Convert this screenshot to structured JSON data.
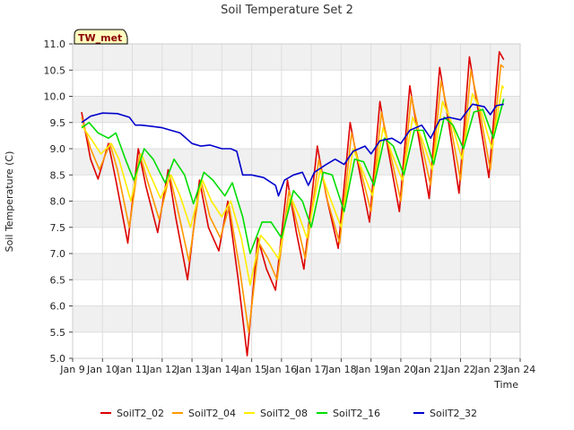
{
  "chart_data": {
    "type": "line",
    "title": "Soil Temperature Set 2",
    "xlabel": "Time",
    "ylabel": "Soil Temperature (C)",
    "station_label": "TW_met",
    "xlim": [
      9,
      24
    ],
    "ylim": [
      5.0,
      11.0
    ],
    "x_tick_labels": [
      "Jan 9",
      "Jan 10",
      "Jan 11",
      "Jan 12",
      "Jan 13",
      "Jan 14",
      "Jan 15",
      "Jan 16",
      "Jan 17",
      "Jan 18",
      "Jan 19",
      "Jan 20",
      "Jan 21",
      "Jan 22",
      "Jan 23",
      "Jan 24"
    ],
    "y_tick_labels": [
      "5.0",
      "5.5",
      "6.0",
      "6.5",
      "7.0",
      "7.5",
      "8.0",
      "8.5",
      "9.0",
      "9.5",
      "10.0",
      "10.5",
      "11.0"
    ],
    "grid": true,
    "legend_position": "bottom",
    "series": [
      {
        "name": "SoilT2_02",
        "color": "#dd0000",
        "points": [
          [
            9.3,
            9.7
          ],
          [
            9.6,
            8.8
          ],
          [
            9.85,
            8.42
          ],
          [
            10.2,
            9.1
          ],
          [
            10.45,
            8.4
          ],
          [
            10.85,
            7.2
          ],
          [
            11.2,
            9.0
          ],
          [
            11.45,
            8.3
          ],
          [
            11.85,
            7.4
          ],
          [
            12.2,
            8.6
          ],
          [
            12.45,
            7.7
          ],
          [
            12.85,
            6.5
          ],
          [
            13.25,
            8.4
          ],
          [
            13.55,
            7.5
          ],
          [
            13.9,
            7.05
          ],
          [
            14.2,
            8.0
          ],
          [
            14.55,
            6.5
          ],
          [
            14.85,
            5.05
          ],
          [
            15.2,
            7.3
          ],
          [
            15.5,
            6.7
          ],
          [
            15.8,
            6.3
          ],
          [
            16.2,
            8.4
          ],
          [
            16.5,
            7.4
          ],
          [
            16.75,
            6.7
          ],
          [
            17.2,
            9.05
          ],
          [
            17.5,
            8.1
          ],
          [
            17.9,
            7.1
          ],
          [
            18.3,
            9.5
          ],
          [
            18.6,
            8.6
          ],
          [
            18.95,
            7.6
          ],
          [
            19.3,
            9.9
          ],
          [
            19.6,
            8.9
          ],
          [
            19.95,
            7.8
          ],
          [
            20.3,
            10.2
          ],
          [
            20.6,
            9.2
          ],
          [
            20.95,
            8.05
          ],
          [
            21.3,
            10.55
          ],
          [
            21.6,
            9.5
          ],
          [
            21.95,
            8.15
          ],
          [
            22.3,
            10.75
          ],
          [
            22.6,
            9.7
          ],
          [
            22.95,
            8.45
          ],
          [
            23.3,
            10.85
          ],
          [
            23.45,
            10.7
          ]
        ]
      },
      {
        "name": "SoilT2_04",
        "color": "#ff9900",
        "points": [
          [
            9.3,
            9.6
          ],
          [
            9.6,
            9.0
          ],
          [
            9.9,
            8.6
          ],
          [
            10.25,
            9.1
          ],
          [
            10.5,
            8.6
          ],
          [
            10.9,
            7.5
          ],
          [
            11.25,
            8.9
          ],
          [
            11.5,
            8.4
          ],
          [
            11.9,
            7.65
          ],
          [
            12.25,
            8.5
          ],
          [
            12.5,
            7.9
          ],
          [
            12.9,
            6.85
          ],
          [
            13.3,
            8.4
          ],
          [
            13.6,
            7.7
          ],
          [
            13.95,
            7.3
          ],
          [
            14.25,
            7.9
          ],
          [
            14.6,
            6.7
          ],
          [
            14.9,
            5.5
          ],
          [
            15.25,
            7.2
          ],
          [
            15.55,
            6.9
          ],
          [
            15.85,
            6.5
          ],
          [
            16.25,
            8.2
          ],
          [
            16.55,
            7.5
          ],
          [
            16.8,
            6.9
          ],
          [
            17.25,
            8.8
          ],
          [
            17.55,
            8.0
          ],
          [
            17.95,
            7.2
          ],
          [
            18.35,
            9.3
          ],
          [
            18.65,
            8.6
          ],
          [
            19.0,
            7.8
          ],
          [
            19.35,
            9.7
          ],
          [
            19.65,
            8.9
          ],
          [
            20.0,
            8.0
          ],
          [
            20.35,
            10.0
          ],
          [
            20.65,
            9.2
          ],
          [
            21.0,
            8.3
          ],
          [
            21.35,
            10.3
          ],
          [
            21.65,
            9.5
          ],
          [
            22.0,
            8.4
          ],
          [
            22.35,
            10.5
          ],
          [
            22.65,
            9.7
          ],
          [
            23.0,
            8.6
          ],
          [
            23.35,
            10.6
          ],
          [
            23.45,
            10.55
          ]
        ]
      },
      {
        "name": "SoilT2_08",
        "color": "#ffee00",
        "points": [
          [
            9.3,
            9.45
          ],
          [
            9.6,
            9.2
          ],
          [
            9.95,
            8.9
          ],
          [
            10.3,
            9.1
          ],
          [
            10.55,
            8.8
          ],
          [
            10.95,
            8.0
          ],
          [
            11.3,
            8.9
          ],
          [
            11.6,
            8.5
          ],
          [
            11.95,
            8.05
          ],
          [
            12.3,
            8.5
          ],
          [
            12.6,
            8.1
          ],
          [
            12.95,
            7.5
          ],
          [
            13.35,
            8.4
          ],
          [
            13.65,
            8.0
          ],
          [
            14.0,
            7.7
          ],
          [
            14.3,
            8.0
          ],
          [
            14.65,
            7.3
          ],
          [
            14.95,
            6.4
          ],
          [
            15.3,
            7.35
          ],
          [
            15.6,
            7.15
          ],
          [
            15.9,
            6.9
          ],
          [
            16.3,
            8.1
          ],
          [
            16.6,
            7.7
          ],
          [
            16.85,
            7.3
          ],
          [
            17.3,
            8.6
          ],
          [
            17.6,
            8.1
          ],
          [
            18.0,
            7.5
          ],
          [
            18.4,
            9.0
          ],
          [
            18.7,
            8.6
          ],
          [
            19.05,
            8.1
          ],
          [
            19.4,
            9.4
          ],
          [
            19.7,
            8.9
          ],
          [
            20.05,
            8.4
          ],
          [
            20.4,
            9.6
          ],
          [
            20.7,
            9.2
          ],
          [
            21.05,
            8.6
          ],
          [
            21.4,
            9.9
          ],
          [
            21.7,
            9.5
          ],
          [
            22.05,
            8.8
          ],
          [
            22.4,
            10.05
          ],
          [
            22.7,
            9.7
          ],
          [
            23.05,
            9.0
          ],
          [
            23.4,
            10.2
          ],
          [
            23.45,
            10.15
          ]
        ]
      },
      {
        "name": "SoilT2_16",
        "color": "#00dd00",
        "points": [
          [
            9.3,
            9.4
          ],
          [
            9.55,
            9.5
          ],
          [
            9.85,
            9.3
          ],
          [
            10.2,
            9.2
          ],
          [
            10.45,
            9.3
          ],
          [
            10.8,
            8.75
          ],
          [
            11.05,
            8.4
          ],
          [
            11.4,
            9.0
          ],
          [
            11.7,
            8.8
          ],
          [
            12.1,
            8.35
          ],
          [
            12.4,
            8.8
          ],
          [
            12.75,
            8.5
          ],
          [
            13.05,
            7.95
          ],
          [
            13.4,
            8.55
          ],
          [
            13.7,
            8.4
          ],
          [
            14.1,
            8.1
          ],
          [
            14.35,
            8.35
          ],
          [
            14.7,
            7.7
          ],
          [
            14.95,
            7.0
          ],
          [
            15.35,
            7.6
          ],
          [
            15.65,
            7.6
          ],
          [
            16.0,
            7.3
          ],
          [
            16.4,
            8.2
          ],
          [
            16.7,
            8.0
          ],
          [
            17.0,
            7.5
          ],
          [
            17.4,
            8.55
          ],
          [
            17.7,
            8.5
          ],
          [
            18.1,
            7.8
          ],
          [
            18.45,
            8.8
          ],
          [
            18.75,
            8.75
          ],
          [
            19.1,
            8.3
          ],
          [
            19.45,
            9.2
          ],
          [
            19.75,
            9.05
          ],
          [
            20.1,
            8.5
          ],
          [
            20.45,
            9.35
          ],
          [
            20.75,
            9.35
          ],
          [
            21.1,
            8.7
          ],
          [
            21.45,
            9.6
          ],
          [
            21.75,
            9.45
          ],
          [
            22.1,
            9.0
          ],
          [
            22.45,
            9.7
          ],
          [
            22.75,
            9.75
          ],
          [
            23.1,
            9.2
          ],
          [
            23.45,
            9.95
          ]
        ]
      },
      {
        "name": "SoilT2_32",
        "color": "#0000cc",
        "points": [
          [
            9.3,
            9.5
          ],
          [
            9.6,
            9.62
          ],
          [
            10.0,
            9.68
          ],
          [
            10.5,
            9.67
          ],
          [
            10.9,
            9.6
          ],
          [
            11.1,
            9.45
          ],
          [
            11.3,
            9.45
          ],
          [
            11.6,
            9.43
          ],
          [
            12.0,
            9.4
          ],
          [
            12.3,
            9.35
          ],
          [
            12.6,
            9.3
          ],
          [
            13.0,
            9.1
          ],
          [
            13.3,
            9.05
          ],
          [
            13.6,
            9.07
          ],
          [
            14.0,
            9.0
          ],
          [
            14.3,
            9.0
          ],
          [
            14.5,
            8.95
          ],
          [
            14.7,
            8.5
          ],
          [
            15.0,
            8.5
          ],
          [
            15.4,
            8.45
          ],
          [
            15.8,
            8.3
          ],
          [
            15.9,
            8.1
          ],
          [
            16.1,
            8.4
          ],
          [
            16.4,
            8.5
          ],
          [
            16.7,
            8.55
          ],
          [
            16.9,
            8.3
          ],
          [
            17.1,
            8.55
          ],
          [
            17.5,
            8.7
          ],
          [
            17.8,
            8.8
          ],
          [
            18.1,
            8.7
          ],
          [
            18.4,
            8.95
          ],
          [
            18.8,
            9.05
          ],
          [
            19.0,
            8.9
          ],
          [
            19.3,
            9.15
          ],
          [
            19.7,
            9.2
          ],
          [
            20.0,
            9.1
          ],
          [
            20.3,
            9.35
          ],
          [
            20.7,
            9.45
          ],
          [
            21.0,
            9.2
          ],
          [
            21.3,
            9.55
          ],
          [
            21.6,
            9.6
          ],
          [
            22.0,
            9.55
          ],
          [
            22.4,
            9.85
          ],
          [
            22.8,
            9.8
          ],
          [
            23.0,
            9.65
          ],
          [
            23.2,
            9.82
          ],
          [
            23.45,
            9.85
          ]
        ]
      }
    ]
  }
}
